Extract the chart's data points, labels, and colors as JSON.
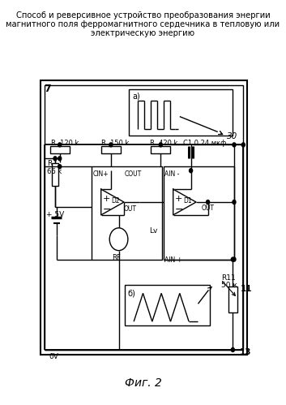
{
  "title_line1": "Способ и реверсивное устройство преобразования энергии",
  "title_line2": "магнитного поля ферромагнитного сердечника в тепловую или",
  "title_line3": "электрическую энергию",
  "fig_label": "Фиг. 2",
  "bg_color": "#ffffff"
}
